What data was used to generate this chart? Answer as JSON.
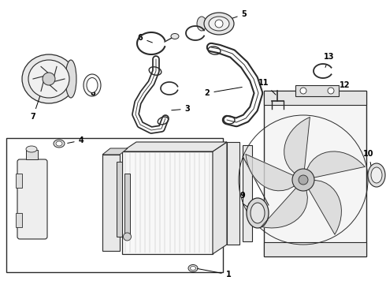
{
  "bg_color": "#ffffff",
  "line_color": "#2a2a2a",
  "label_color": "#000000",
  "fig_width": 4.9,
  "fig_height": 3.6,
  "dpi": 100
}
